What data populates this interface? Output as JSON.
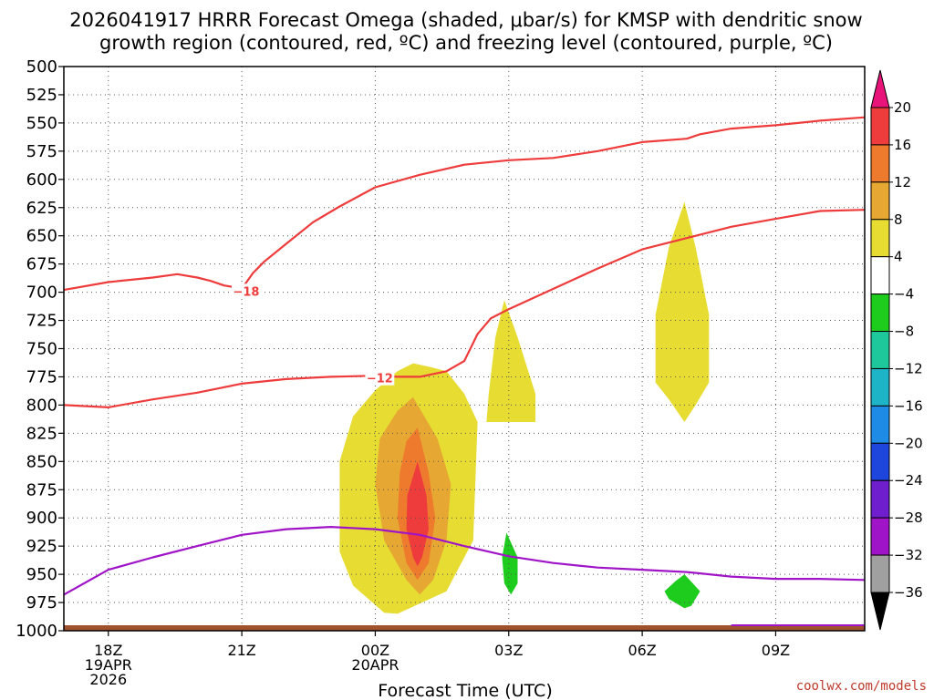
{
  "chart_data": {
    "type": "heatmap",
    "title_line1": "2026041917 HRRR Forecast Omega (shaded, μbar/s) for KMSP with dendritic snow",
    "title_line2": "growth region (contoured, red, ºC) and freezing level (contoured, purple, ºC)",
    "xlabel": "Forecast Time (UTC)",
    "credit": "coolwx.com/models",
    "y_ticks": [
      500,
      525,
      550,
      575,
      600,
      625,
      650,
      675,
      700,
      725,
      750,
      775,
      800,
      825,
      850,
      875,
      900,
      925,
      950,
      975,
      1000
    ],
    "x_ticks": [
      {
        "hour": 1,
        "label": "18Z",
        "label2": "19APR",
        "label3": "2026"
      },
      {
        "hour": 4,
        "label": "21Z"
      },
      {
        "hour": 7,
        "label": "00Z",
        "label2": "20APR"
      },
      {
        "hour": 10,
        "label": "03Z"
      },
      {
        "hour": 13,
        "label": "06Z"
      },
      {
        "hour": 16,
        "label": "09Z"
      }
    ],
    "x_range_hours": [
      0,
      18
    ],
    "y_range_hpa": [
      500,
      1000
    ],
    "colorbar": {
      "labels": [
        "20",
        "16",
        "12",
        "8",
        "4",
        "−4",
        "−8",
        "−12",
        "−16",
        "−20",
        "−24",
        "−28",
        "−32",
        "−36"
      ],
      "colors_top_to_bottom": [
        "#e8147a",
        "#ee3b3b",
        "#ee7a2e",
        "#e6a832",
        "#e6dc32",
        "#ffffff",
        "#1ecc1e",
        "#1ec89a",
        "#1eb4c8",
        "#1e8ce6",
        "#1e46dc",
        "#6e1ecd",
        "#a014c8",
        "#a0a0a0",
        "#000000"
      ]
    },
    "contours": [
      {
        "name": "dgz-minus18",
        "label": "−18",
        "color": "#ee3b3b",
        "points": [
          [
            0,
            698
          ],
          [
            1,
            691
          ],
          [
            2,
            687
          ],
          [
            2.55,
            684
          ],
          [
            3,
            687
          ],
          [
            3.3,
            690
          ],
          [
            3.6,
            694
          ],
          [
            3.9,
            696
          ],
          [
            4,
            697
          ],
          [
            4.25,
            683
          ],
          [
            4.5,
            673
          ],
          [
            5,
            657
          ],
          [
            5.6,
            638
          ],
          [
            6.2,
            624
          ],
          [
            7,
            607
          ],
          [
            8,
            596
          ],
          [
            9,
            587
          ],
          [
            10,
            583
          ],
          [
            11,
            581
          ],
          [
            12,
            575
          ],
          [
            13,
            567
          ],
          [
            14,
            564
          ],
          [
            14.3,
            560
          ],
          [
            15,
            555
          ],
          [
            16,
            552
          ],
          [
            17,
            548
          ],
          [
            18,
            545
          ]
        ]
      },
      {
        "name": "dgz-minus12",
        "label": "−12",
        "color": "#ee3b3b",
        "points": [
          [
            0,
            800
          ],
          [
            1,
            802
          ],
          [
            2,
            795
          ],
          [
            3,
            789
          ],
          [
            4,
            781
          ],
          [
            5,
            777
          ],
          [
            6,
            775
          ],
          [
            7,
            774
          ],
          [
            7.5,
            775
          ],
          [
            8,
            775
          ],
          [
            8.6,
            770
          ],
          [
            9,
            761
          ],
          [
            9.3,
            737
          ],
          [
            9.6,
            723
          ],
          [
            10,
            715
          ],
          [
            11,
            697
          ],
          [
            12,
            679
          ],
          [
            13,
            662
          ],
          [
            14,
            652
          ],
          [
            15,
            642
          ],
          [
            16,
            635
          ],
          [
            17,
            628
          ],
          [
            18,
            627
          ]
        ]
      },
      {
        "name": "freezing-level",
        "label": "",
        "color": "#a014c8",
        "points": [
          [
            0,
            968
          ],
          [
            1,
            946
          ],
          [
            2,
            935
          ],
          [
            3,
            925
          ],
          [
            4,
            915
          ],
          [
            5,
            910
          ],
          [
            6,
            908
          ],
          [
            7,
            910
          ],
          [
            8,
            915
          ],
          [
            9,
            925
          ],
          [
            10,
            934
          ],
          [
            11,
            940
          ],
          [
            12,
            944
          ],
          [
            13,
            946
          ],
          [
            14,
            948
          ],
          [
            15,
            952
          ],
          [
            16,
            954
          ],
          [
            17,
            954
          ],
          [
            18,
            955
          ]
        ]
      }
    ],
    "shaded_regions": [
      {
        "name": "omega-4to8-a",
        "color": "#e6dc32",
        "points": [
          [
            8.6,
            770
          ],
          [
            9,
            790
          ],
          [
            9.3,
            815
          ],
          [
            9.2,
            920
          ],
          [
            8.6,
            965
          ],
          [
            7.5,
            985
          ],
          [
            7.2,
            984
          ],
          [
            6.5,
            960
          ],
          [
            6.2,
            930
          ],
          [
            6.2,
            850
          ],
          [
            6.5,
            810
          ],
          [
            7,
            787
          ],
          [
            7.5,
            770
          ],
          [
            7.85,
            763
          ],
          [
            8.2,
            766
          ]
        ]
      },
      {
        "name": "omega-8to12-a",
        "color": "#e6a832",
        "points": [
          [
            7.85,
            793
          ],
          [
            8.4,
            830
          ],
          [
            8.7,
            870
          ],
          [
            8.6,
            920
          ],
          [
            8.3,
            955
          ],
          [
            8,
            968
          ],
          [
            7.7,
            955
          ],
          [
            7.2,
            920
          ],
          [
            7,
            870
          ],
          [
            7.1,
            830
          ],
          [
            7.5,
            805
          ]
        ]
      },
      {
        "name": "omega-12to16-a",
        "color": "#ee7a2e",
        "points": [
          [
            7.95,
            820
          ],
          [
            8.2,
            860
          ],
          [
            8.35,
            900
          ],
          [
            8.2,
            940
          ],
          [
            7.95,
            955
          ],
          [
            7.7,
            940
          ],
          [
            7.5,
            900
          ],
          [
            7.55,
            860
          ],
          [
            7.7,
            832
          ]
        ]
      },
      {
        "name": "omega-16to20-a",
        "color": "#ee3b3b",
        "points": [
          [
            7.95,
            850
          ],
          [
            8.15,
            880
          ],
          [
            8.2,
            910
          ],
          [
            8.05,
            935
          ],
          [
            7.95,
            943
          ],
          [
            7.85,
            935
          ],
          [
            7.7,
            910
          ],
          [
            7.72,
            880
          ]
        ]
      },
      {
        "name": "omega-4to8-b",
        "color": "#e6dc32",
        "points": [
          [
            9.9,
            707
          ],
          [
            10.2,
            740
          ],
          [
            10.6,
            790
          ],
          [
            10.6,
            815
          ],
          [
            9.5,
            815
          ],
          [
            9.55,
            790
          ],
          [
            9.7,
            740
          ]
        ]
      },
      {
        "name": "omega-4to8-c",
        "color": "#e6dc32",
        "points": [
          [
            13.95,
            620
          ],
          [
            14.2,
            660
          ],
          [
            14.5,
            720
          ],
          [
            14.5,
            780
          ],
          [
            14.2,
            800
          ],
          [
            13.95,
            815
          ],
          [
            13.6,
            795
          ],
          [
            13.3,
            780
          ],
          [
            13.3,
            720
          ],
          [
            13.6,
            660
          ]
        ]
      },
      {
        "name": "omega-minus4-a",
        "color": "#1ecc1e",
        "points": [
          [
            9.95,
            913
          ],
          [
            10.2,
            935
          ],
          [
            10.2,
            958
          ],
          [
            10.05,
            968
          ],
          [
            9.9,
            958
          ],
          [
            9.85,
            935
          ]
        ]
      },
      {
        "name": "omega-minus4-b",
        "color": "#1ecc1e",
        "points": [
          [
            13.95,
            950
          ],
          [
            14.3,
            965
          ],
          [
            14.1,
            978
          ],
          [
            13.95,
            980
          ],
          [
            13.6,
            972
          ],
          [
            13.5,
            965
          ],
          [
            13.75,
            956
          ]
        ]
      }
    ]
  }
}
